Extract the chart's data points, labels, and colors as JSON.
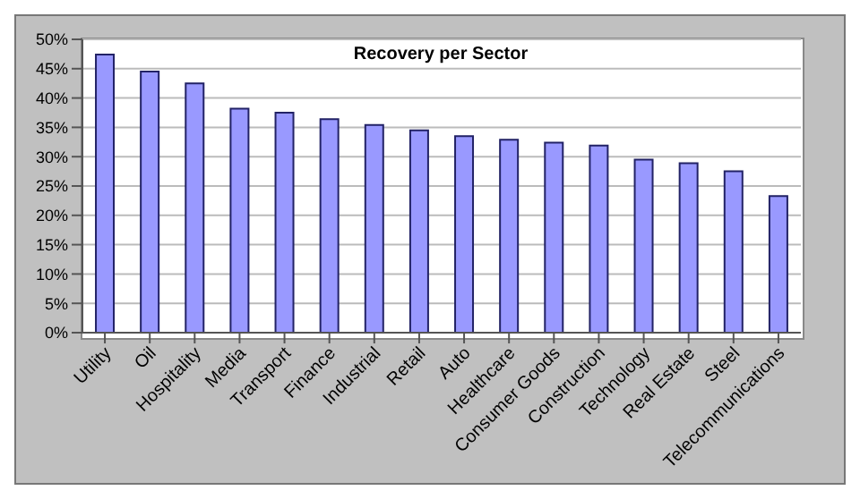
{
  "chart_data": {
    "type": "bar",
    "title": "Recovery per Sector",
    "categories": [
      "Utility",
      "Oil",
      "Hospitality",
      "Media",
      "Transport",
      "Finance",
      "Industrial",
      "Retail",
      "Auto",
      "Healthcare",
      "Consumer Goods",
      "Construction",
      "Technology",
      "Real Estate",
      "Steel",
      "Telecommunications"
    ],
    "values": [
      47.4,
      44.5,
      42.5,
      38.2,
      37.5,
      36.4,
      35.4,
      34.5,
      33.5,
      32.9,
      32.4,
      31.9,
      29.5,
      28.9,
      27.5,
      23.3
    ],
    "color": "#9999ff",
    "ylim": [
      0,
      50
    ],
    "yticks": [
      {
        "value": 0,
        "label": "0%"
      },
      {
        "value": 5,
        "label": "5%"
      },
      {
        "value": 10,
        "label": "10%"
      },
      {
        "value": 15,
        "label": "15%"
      },
      {
        "value": 20,
        "label": "20%"
      },
      {
        "value": 25,
        "label": "25%"
      },
      {
        "value": 30,
        "label": "30%"
      },
      {
        "value": 35,
        "label": "35%"
      },
      {
        "value": 40,
        "label": "40%"
      },
      {
        "value": 45,
        "label": "45%"
      },
      {
        "value": 50,
        "label": "50%"
      }
    ],
    "grid": "y"
  }
}
